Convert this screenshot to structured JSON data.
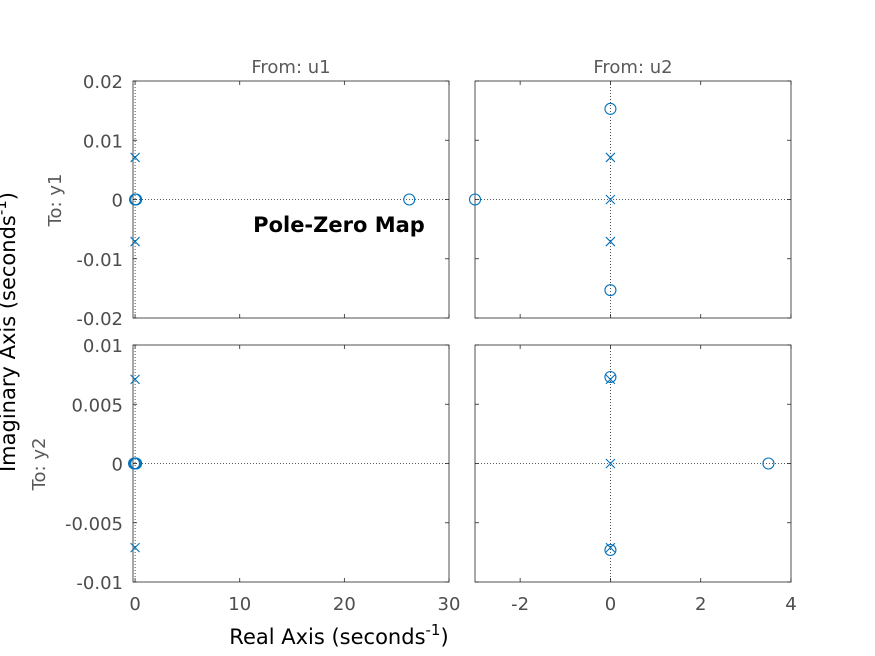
{
  "chart_data": {
    "type": "scatter",
    "title": "Pole-Zero Map",
    "xlabel": "Real Axis (seconds",
    "ylabel": "Imaginary Axis (seconds",
    "unit_exponent": "-1",
    "column_labels": [
      "From: u1",
      "From: u2"
    ],
    "row_labels": [
      "To: y1",
      "To: y2"
    ],
    "columns": [
      {
        "xlim": [
          -0.2,
          30
        ],
        "xticks": [
          0,
          10,
          20,
          30
        ],
        "xtick_labels": [
          "0",
          "10",
          "20",
          "30"
        ]
      },
      {
        "xlim": [
          -3,
          4
        ],
        "xticks": [
          -2,
          0,
          2,
          4
        ],
        "xtick_labels": [
          "-2",
          "0",
          "2",
          "4"
        ]
      }
    ],
    "rows": [
      {
        "ylim": [
          -0.02,
          0.02
        ],
        "yticks": [
          0.02,
          0.01,
          0,
          -0.01,
          -0.02
        ],
        "ytick_labels": [
          "0.02",
          "0.01",
          "0",
          "-0.01",
          "-0.02"
        ]
      },
      {
        "ylim": [
          -0.01,
          0.01
        ],
        "yticks": [
          0.01,
          0.005,
          0,
          -0.005,
          -0.01
        ],
        "ytick_labels": [
          "0.01",
          "0.005",
          "0",
          "-0.005",
          "-0.01"
        ]
      }
    ],
    "subplots": [
      {
        "row": 0,
        "col": 0,
        "poles": [
          [
            0,
            0.0071
          ],
          [
            0,
            -0.0071
          ]
        ],
        "zeros": [
          [
            0,
            0
          ],
          [
            0.1,
            0
          ],
          [
            26.2,
            0
          ]
        ]
      },
      {
        "row": 0,
        "col": 1,
        "poles": [
          [
            0,
            0.0071
          ],
          [
            0,
            0
          ],
          [
            0,
            -0.0071
          ]
        ],
        "zeros": [
          [
            0,
            0.0153
          ],
          [
            0,
            -0.0153
          ],
          [
            -3,
            0
          ]
        ]
      },
      {
        "row": 1,
        "col": 0,
        "poles": [
          [
            0,
            0.0071
          ],
          [
            0,
            -0.0071
          ]
        ],
        "zeros": [
          [
            -0.1,
            0
          ],
          [
            0,
            0
          ],
          [
            0.1,
            0
          ]
        ]
      },
      {
        "row": 1,
        "col": 1,
        "poles": [
          [
            0,
            0.0071
          ],
          [
            0,
            0
          ],
          [
            0,
            -0.0071
          ]
        ],
        "zeros": [
          [
            0,
            0.0073
          ],
          [
            0,
            -0.0073
          ],
          [
            3.5,
            0
          ]
        ]
      }
    ],
    "grid": false,
    "legend": "none",
    "marker_color": "#0072bd"
  }
}
